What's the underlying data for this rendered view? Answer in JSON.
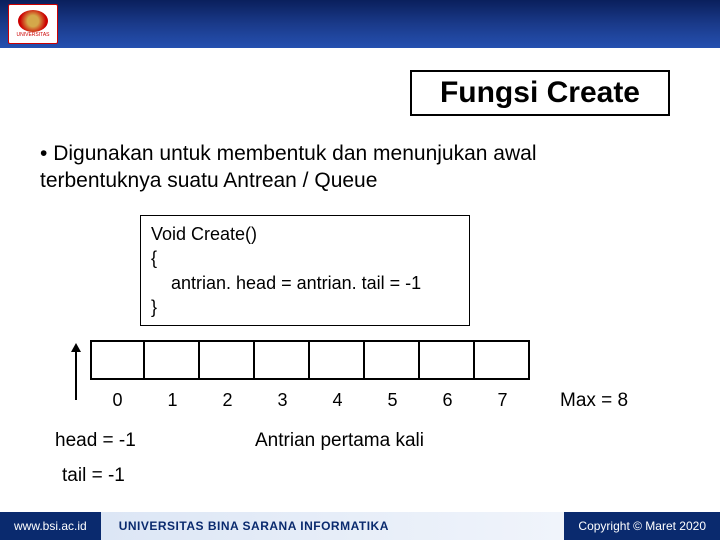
{
  "header": {
    "logo_text": "UNIVERSITAS"
  },
  "title": "Fungsi Create",
  "bullet": "Digunakan untuk membentuk dan menunjukan awal terbentuknya suatu Antrean / Queue",
  "code": {
    "line1": "Void Create()",
    "line2": "{",
    "line3": "antrian. head = antrian. tail = -1",
    "line4": "}"
  },
  "array": {
    "indices": [
      "0",
      "1",
      "2",
      "3",
      "4",
      "5",
      "6",
      "7"
    ],
    "max_label": "Max = 8",
    "cell_count": 8
  },
  "pointers": {
    "head": "head = -1",
    "tail": "tail =  -1",
    "caption": "Antrian pertama kali"
  },
  "footer": {
    "left": "www.bsi.ac.id",
    "mid": "UNIVERSITAS BINA SARANA INFORMATIKA",
    "right": "Copyright © Maret 2020"
  },
  "colors": {
    "header_gradient_top": "#0a1f5c",
    "header_gradient_bottom": "#2550b0",
    "footer_dark": "#0a2a6e",
    "border": "#000000",
    "background": "#ffffff"
  }
}
